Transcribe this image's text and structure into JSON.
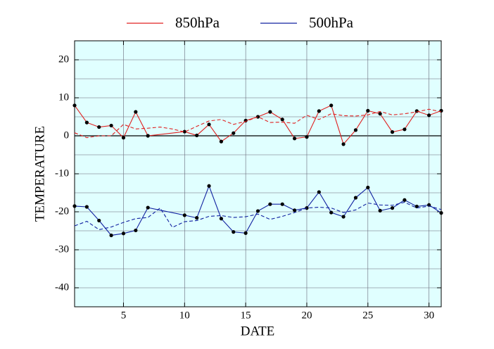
{
  "chart_data": {
    "type": "line",
    "xlabel": "DATE",
    "ylabel": "TEMPERATURE",
    "xlim": [
      1,
      31
    ],
    "xticks": [
      5,
      10,
      15,
      20,
      25,
      30
    ],
    "ylim": [
      -45,
      25
    ],
    "yticks": [
      -40,
      -30,
      -20,
      -10,
      0,
      10,
      20
    ],
    "minor_yticks": [
      -35,
      -25,
      -15,
      -5,
      5,
      15
    ],
    "grid": true,
    "background": "#e0ffff",
    "zero_line": true,
    "series": [
      {
        "name": "850hPa",
        "color": "#e02020",
        "markers": true,
        "x": [
          1,
          2,
          3,
          4,
          5,
          6,
          7,
          10,
          11,
          12,
          13,
          14,
          15,
          16,
          17,
          18,
          19,
          20,
          21,
          22,
          23,
          24,
          25,
          26,
          27,
          28,
          29,
          30,
          31
        ],
        "values": [
          8,
          3.5,
          2.3,
          2.7,
          -0.5,
          6.3,
          0,
          1.1,
          0.1,
          3,
          -1.5,
          0.7,
          4,
          5,
          6.3,
          4.3,
          -0.7,
          -0.3,
          6.5,
          8,
          -2.2,
          1.5,
          6.6,
          5.8,
          1,
          1.7,
          6.5,
          5.4,
          6.6
        ]
      },
      {
        "name": "500hPa",
        "color": "#1020a0",
        "markers": true,
        "x": [
          1,
          2,
          3,
          4,
          5,
          6,
          7,
          10,
          11,
          12,
          13,
          14,
          15,
          16,
          17,
          18,
          19,
          20,
          21,
          22,
          23,
          24,
          25,
          26,
          27,
          28,
          29,
          30,
          31
        ],
        "values": [
          -18.5,
          -18.7,
          -22.3,
          -26.2,
          -25.7,
          -24.9,
          -18.9,
          -20.9,
          -21.6,
          -13.2,
          -21.8,
          -25.3,
          -25.6,
          -19.8,
          -18,
          -18,
          -19.6,
          -19,
          -14.8,
          -20.2,
          -21.3,
          -16.3,
          -13.6,
          -19.7,
          -19,
          -16.9,
          -18.6,
          -18.2,
          -20.3
        ]
      },
      {
        "color": "#e02020",
        "dash": true,
        "x": [
          1,
          2,
          3,
          4,
          5,
          6,
          7,
          8,
          9,
          10,
          11,
          12,
          13,
          14,
          15,
          16,
          17,
          18,
          19,
          20,
          21,
          22,
          23,
          24,
          25,
          26,
          27,
          28,
          29,
          30,
          31
        ],
        "values": [
          0.8,
          -0.5,
          0,
          0,
          3,
          1.8,
          2,
          2.3,
          1.8,
          1,
          2.5,
          3.9,
          4.3,
          3,
          3.8,
          5,
          3.5,
          3.6,
          3.3,
          5.4,
          4.3,
          5.8,
          5.3,
          5.2,
          5.5,
          6.4,
          5.5,
          5.8,
          6.3,
          7,
          6.3
        ]
      },
      {
        "color": "#1020a0",
        "dash": true,
        "x": [
          1,
          2,
          3,
          4,
          5,
          6,
          7,
          8,
          9,
          10,
          11,
          12,
          13,
          14,
          15,
          16,
          17,
          18,
          19,
          20,
          21,
          22,
          23,
          24,
          25,
          26,
          27,
          28,
          29,
          30,
          31
        ],
        "values": [
          -23.7,
          -22.5,
          -24.7,
          -24,
          -22.8,
          -21.8,
          -21.5,
          -19,
          -24.1,
          -22.6,
          -22.3,
          -21.2,
          -21,
          -21.5,
          -21.3,
          -20.6,
          -22,
          -21.2,
          -20.2,
          -19,
          -18.8,
          -19,
          -20.2,
          -19.5,
          -17.7,
          -18.2,
          -18.3,
          -17.5,
          -19,
          -18.5,
          -19.4
        ]
      }
    ]
  }
}
